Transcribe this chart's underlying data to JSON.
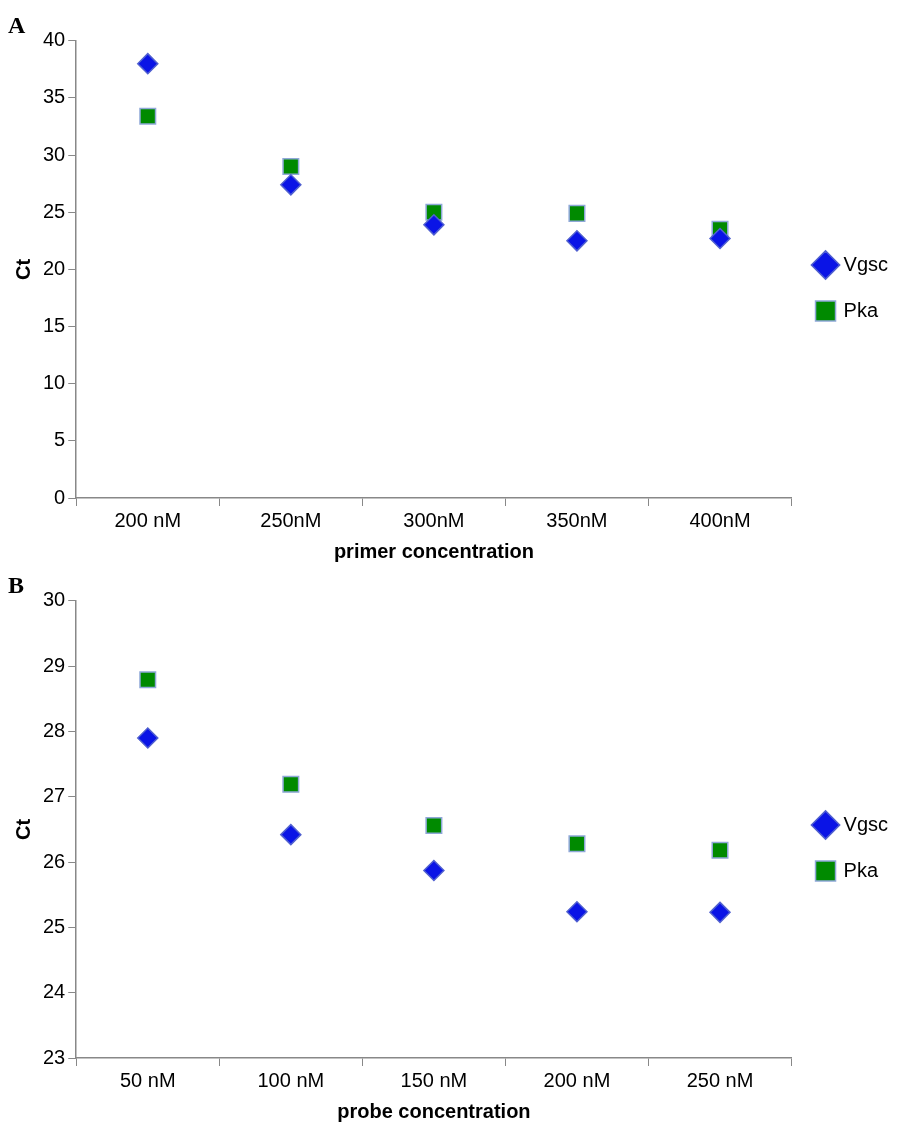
{
  "chart_data": [
    {
      "type": "scatter",
      "title": "A",
      "xlabel": "primer concentration",
      "ylabel": "Ct",
      "categories": [
        "200 nM",
        "250nM",
        "300nM",
        "350nM",
        "400nM"
      ],
      "series": [
        {
          "name": "Vgsc",
          "color": "#0a14e6",
          "marker": "diamond",
          "values": [
            38.0,
            27.4,
            23.9,
            22.5,
            22.7
          ]
        },
        {
          "name": "Pka",
          "color": "#008a00",
          "marker": "square",
          "values": [
            33.4,
            29.0,
            25.0,
            24.9,
            23.5
          ]
        }
      ],
      "ylim": [
        0,
        40
      ],
      "yticks": [
        0,
        5,
        10,
        15,
        20,
        25,
        30,
        35,
        40
      ],
      "grid": false,
      "legend": "right"
    },
    {
      "type": "scatter",
      "title": "B",
      "xlabel": "probe concentration",
      "ylabel": "Ct",
      "categories": [
        "50 nM",
        "100 nM",
        "150 nM",
        "200 nM",
        "250 nM"
      ],
      "series": [
        {
          "name": "Vgsc",
          "color": "#0a14e6",
          "marker": "diamond",
          "values": [
            27.9,
            26.42,
            25.87,
            25.24,
            25.23
          ]
        },
        {
          "name": "Pka",
          "color": "#008a00",
          "marker": "square",
          "values": [
            28.79,
            27.19,
            26.56,
            26.28,
            26.18
          ]
        }
      ],
      "ylim": [
        23,
        30
      ],
      "yticks": [
        23,
        24,
        25,
        26,
        27,
        28,
        29,
        30
      ],
      "grid": false,
      "legend": "right"
    }
  ]
}
